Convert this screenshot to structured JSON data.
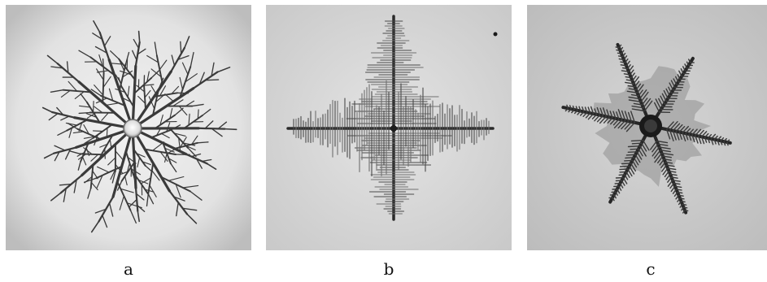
{
  "panels": [
    {
      "id": "a",
      "caption": "a"
    },
    {
      "id": "b",
      "caption": "b"
    },
    {
      "id": "c",
      "caption": "c"
    }
  ],
  "colors": {
    "background_a": "#dcdcdc",
    "background_b": "#d2d2d2",
    "background_c": "#c8c8c8",
    "crystal_dark": "#2e2e2e",
    "crystal_mid": "#6a6a6a",
    "crystal_light": "#9a9a9a"
  }
}
